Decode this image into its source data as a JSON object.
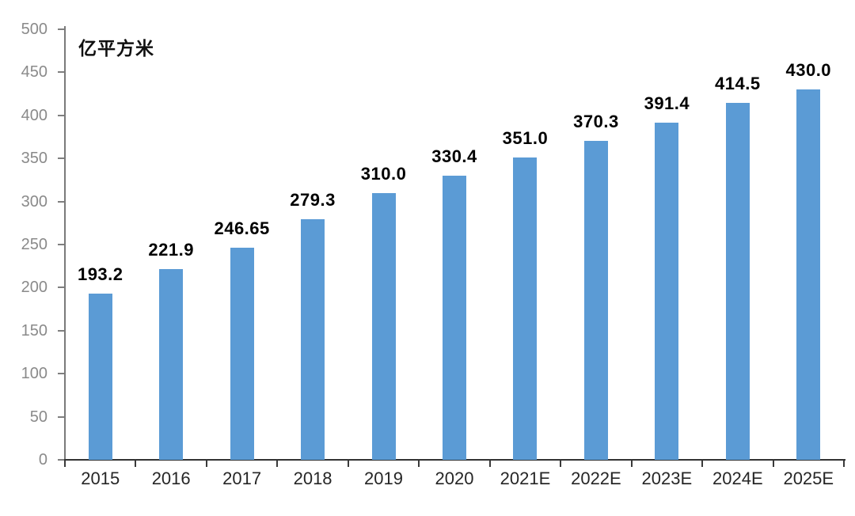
{
  "chart_data": {
    "type": "bar",
    "title": "",
    "xlabel": "",
    "ylabel": "亿平方米",
    "categories": [
      "2015",
      "2016",
      "2017",
      "2018",
      "2019",
      "2020",
      "2021E",
      "2022E",
      "2023E",
      "2024E",
      "2025E"
    ],
    "values": [
      193.2,
      221.9,
      246.65,
      279.3,
      310.0,
      330.4,
      351.0,
      370.3,
      391.4,
      414.5,
      430.0
    ],
    "value_labels": [
      "193.2",
      "221.9",
      "246.65",
      "279.3",
      "310.0",
      "330.4",
      "351.0",
      "370.3",
      "391.4",
      "414.5",
      "430.0"
    ],
    "ylim": [
      0,
      500
    ],
    "ytick_labels": [
      "0",
      "50",
      "100",
      "150",
      "200",
      "250",
      "300",
      "350",
      "400",
      "450",
      "500"
    ],
    "grid": "off",
    "legend": "none",
    "colors": {
      "bar": "#5B9BD5",
      "y_axis_line": "#7A7A7A",
      "x_axis_line": "#333333",
      "y_tick_label": "#8A8A8A",
      "x_tick_label": "#262626",
      "value_label": "#000000"
    }
  }
}
